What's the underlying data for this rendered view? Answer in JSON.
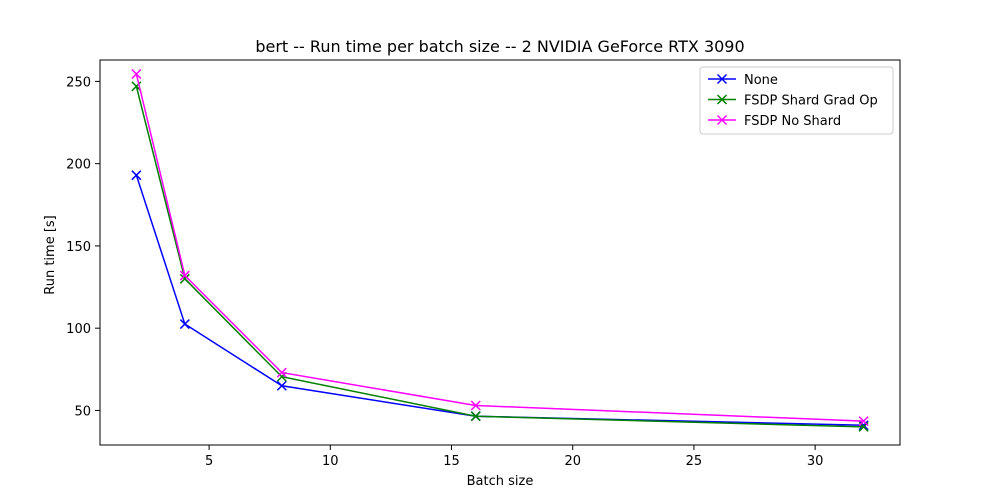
{
  "chart_data": {
    "type": "line",
    "title": "bert -- Run time per batch size -- 2 NVIDIA GeForce RTX 3090",
    "xlabel": "Batch size",
    "ylabel": "Run time [s]",
    "xlim": [
      0.5,
      33.5
    ],
    "ylim": [
      29,
      263
    ],
    "xticks": [
      5,
      10,
      15,
      20,
      25,
      30
    ],
    "yticks": [
      50,
      100,
      150,
      200,
      250
    ],
    "grid": false,
    "legend_position": "top-right",
    "x": [
      2,
      4,
      8,
      16,
      32
    ],
    "series": [
      {
        "name": "None",
        "color": "#0000ff",
        "marker": "x",
        "values": [
          193,
          102.5,
          65,
          46.5,
          41
        ]
      },
      {
        "name": "FSDP Shard Grad Op",
        "color": "#008000",
        "marker": "x",
        "values": [
          247,
          130,
          70.5,
          46.5,
          40
        ]
      },
      {
        "name": "FSDP No Shard",
        "color": "#ff00ff",
        "marker": "x",
        "values": [
          254.5,
          132,
          73,
          53,
          43.5
        ]
      }
    ]
  }
}
